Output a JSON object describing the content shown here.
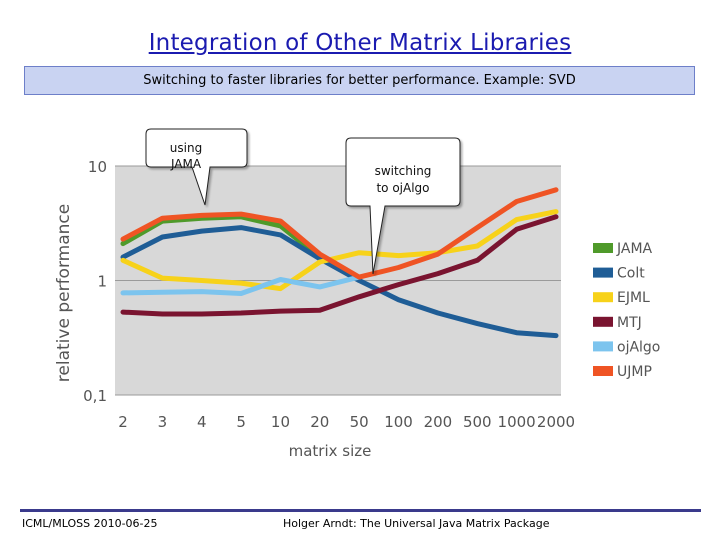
{
  "slide": {
    "title": "Integration of Other Matrix Libraries",
    "subtitle": "Switching to faster libraries for better performance. Example: SVD",
    "footer_left": "ICML/MLOSS 2010-06-25",
    "footer_center": "Holger Arndt: The Universal Java Matrix Package"
  },
  "callouts": [
    {
      "name": "callout-using-jama",
      "lines": [
        "using",
        "JAMA"
      ]
    },
    {
      "name": "callout-switching-ojalgo",
      "lines": [
        "switching",
        "to ojAlgo"
      ]
    }
  ],
  "chart_data": {
    "type": "line",
    "title": "",
    "xlabel": "matrix size",
    "ylabel": "relative performance",
    "y_scale": "log",
    "ylim": [
      0.1,
      10
    ],
    "yticks": [
      {
        "value": 10,
        "label": "10"
      },
      {
        "value": 1,
        "label": "1"
      },
      {
        "value": 0.1,
        "label": "0,1"
      }
    ],
    "categories": [
      "2",
      "3",
      "4",
      "5",
      "10",
      "20",
      "50",
      "100",
      "200",
      "500",
      "1000",
      "2000"
    ],
    "grid": "horizontal",
    "legend_position": "right",
    "series": [
      {
        "name": "JAMA",
        "color": "#4f9a2a",
        "values": [
          2.1,
          3.3,
          3.5,
          3.6,
          3.0,
          1.6,
          null,
          null,
          null,
          null,
          null,
          null
        ]
      },
      {
        "name": "Colt",
        "color": "#1f5d96",
        "values": [
          1.6,
          2.4,
          2.7,
          2.9,
          2.5,
          1.55,
          1.0,
          0.68,
          0.52,
          0.42,
          0.35,
          0.33
        ]
      },
      {
        "name": "EJML",
        "color": "#f7d21a",
        "values": [
          1.5,
          1.05,
          1.0,
          0.95,
          0.85,
          1.45,
          1.75,
          1.65,
          1.75,
          2.0,
          3.4,
          4.0
        ]
      },
      {
        "name": "MTJ",
        "color": "#7a1430",
        "values": [
          0.53,
          0.51,
          0.51,
          0.52,
          0.54,
          0.55,
          0.72,
          0.92,
          1.15,
          1.5,
          2.8,
          3.6
        ]
      },
      {
        "name": "ojAlgo",
        "color": "#7cc4ee",
        "values": [
          0.78,
          0.79,
          0.8,
          0.77,
          1.02,
          0.88,
          1.07,
          null,
          null,
          null,
          null,
          null
        ]
      },
      {
        "name": "UJMP",
        "color": "#ef5424",
        "values": [
          2.3,
          3.5,
          3.7,
          3.8,
          3.3,
          1.7,
          1.07,
          1.3,
          1.7,
          2.9,
          4.9,
          6.2
        ]
      }
    ]
  }
}
